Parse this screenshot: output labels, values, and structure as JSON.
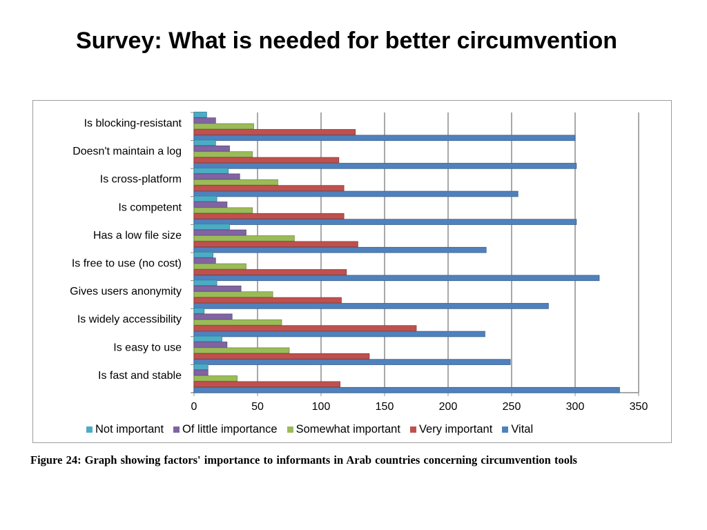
{
  "slide": {
    "title": "Survey: What is needed for better circumvention"
  },
  "caption": "Figure 24: Graph showing factors' importance to informants in Arab countries concerning circumvention tools",
  "chart_data": {
    "type": "bar",
    "orientation": "horizontal",
    "categories": [
      "Is blocking-resistant",
      "Doesn't maintain a log",
      "Is cross-platform",
      "Is competent",
      "Has a low file size",
      "Is free to use (no cost)",
      "Gives users anonymity",
      "Is widely accessibility",
      "Is easy to use",
      "Is fast and stable"
    ],
    "series": [
      {
        "name": "Not important",
        "color": "#4bacc6",
        "values": [
          10,
          17,
          27,
          18,
          28,
          15,
          18,
          8,
          22,
          11
        ]
      },
      {
        "name": "Of little importance",
        "color": "#8064a2",
        "values": [
          17,
          28,
          36,
          26,
          41,
          17,
          37,
          30,
          26,
          11
        ]
      },
      {
        "name": "Somewhat important",
        "color": "#9bbb59",
        "values": [
          47,
          46,
          66,
          46,
          79,
          41,
          62,
          69,
          75,
          34
        ]
      },
      {
        "name": "Very important",
        "color": "#c0504d",
        "values": [
          127,
          114,
          118,
          118,
          129,
          120,
          116,
          175,
          138,
          115
        ]
      },
      {
        "name": "Vital",
        "color": "#4f81bd",
        "values": [
          300,
          301,
          255,
          301,
          230,
          319,
          279,
          229,
          249,
          335
        ]
      }
    ],
    "xlim": [
      0,
      350
    ],
    "xticks": [
      "0",
      "50",
      "100",
      "150",
      "200",
      "250",
      "300",
      "350"
    ],
    "grid": "vertical",
    "legend_position": "bottom"
  }
}
